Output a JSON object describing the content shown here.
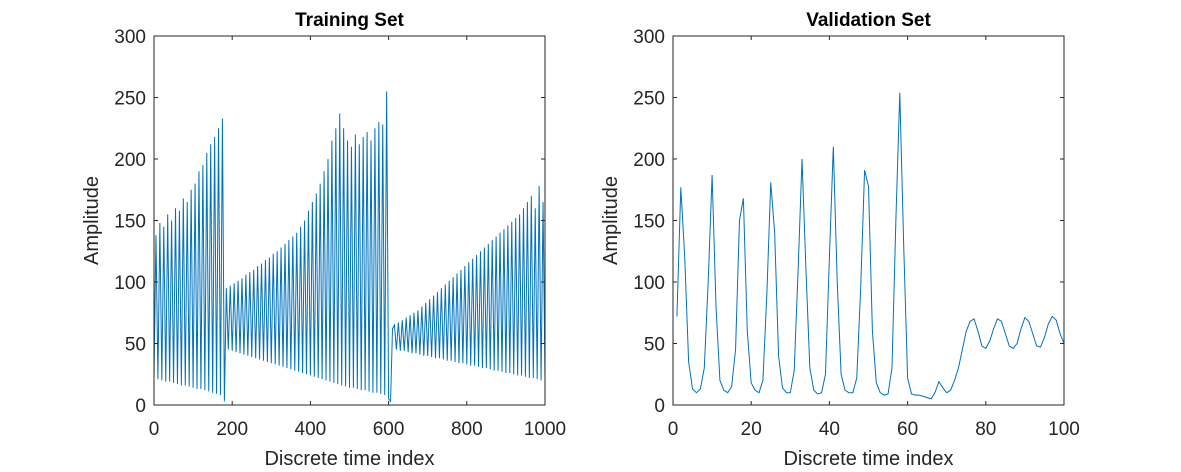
{
  "chart_data": [
    {
      "type": "line",
      "title": "Training Set",
      "xlabel": "Discrete time index",
      "ylabel": "Amplitude",
      "x": [
        0,
        5,
        10,
        15,
        20,
        25,
        30,
        35,
        40,
        45,
        50,
        55,
        60,
        65,
        70,
        75,
        80,
        85,
        90,
        95,
        100,
        105,
        110,
        115,
        120,
        125,
        130,
        135,
        140,
        145,
        150,
        155,
        160,
        165,
        170,
        175,
        180,
        185,
        190,
        195,
        200,
        205,
        210,
        215,
        220,
        225,
        230,
        235,
        240,
        245,
        250,
        255,
        260,
        265,
        270,
        275,
        280,
        285,
        290,
        295,
        300,
        305,
        310,
        315,
        320,
        325,
        330,
        335,
        340,
        345,
        350,
        355,
        360,
        365,
        370,
        375,
        380,
        385,
        390,
        395,
        400,
        405,
        410,
        415,
        420,
        425,
        430,
        435,
        440,
        445,
        450,
        455,
        460,
        465,
        470,
        475,
        480,
        485,
        490,
        495,
        500,
        505,
        510,
        515,
        520,
        525,
        530,
        535,
        540,
        545,
        550,
        555,
        560,
        565,
        570,
        575,
        580,
        585,
        590,
        595,
        600,
        605,
        610,
        615,
        620,
        625,
        630,
        635,
        640,
        645,
        650,
        655,
        660,
        665,
        670,
        675,
        680,
        685,
        690,
        695,
        700,
        705,
        710,
        715,
        720,
        725,
        730,
        735,
        740,
        745,
        750,
        755,
        760,
        765,
        770,
        775,
        780,
        785,
        790,
        795,
        800,
        805,
        810,
        815,
        820,
        825,
        830,
        835,
        840,
        845,
        850,
        855,
        860,
        865,
        870,
        875,
        880,
        885,
        890,
        895,
        900,
        905,
        910,
        915,
        920,
        925,
        930,
        935,
        940,
        945,
        950,
        955,
        960,
        965,
        970,
        975,
        980,
        985,
        990,
        995,
        1000
      ],
      "series": [
        {
          "color": "#0072bd",
          "values": [
            22,
            138,
            21,
            148,
            20,
            145,
            19,
            155,
            19,
            150,
            18,
            160,
            17,
            158,
            16,
            168,
            16,
            165,
            15,
            175,
            14,
            180,
            13,
            190,
            13,
            195,
            12,
            205,
            11,
            212,
            10,
            218,
            9,
            225,
            8,
            233,
            3,
            95,
            45,
            97,
            44,
            99,
            43,
            101,
            42,
            103,
            41,
            106,
            40,
            108,
            39,
            110,
            38,
            113,
            37,
            115,
            36,
            118,
            35,
            120,
            34,
            123,
            33,
            125,
            32,
            128,
            31,
            131,
            30,
            134,
            29,
            137,
            28,
            140,
            27,
            145,
            26,
            150,
            25,
            158,
            24,
            165,
            23,
            172,
            22,
            180,
            21,
            190,
            20,
            200,
            19,
            215,
            18,
            225,
            17,
            237,
            16,
            225,
            15,
            215,
            14,
            210,
            14,
            220,
            13,
            212,
            12,
            218,
            12,
            222,
            11,
            215,
            10,
            225,
            10,
            230,
            9,
            228,
            8,
            255,
            5,
            3,
            62,
            65,
            45,
            67,
            44,
            69,
            44,
            71,
            43,
            73,
            42,
            75,
            42,
            77,
            41,
            80,
            40,
            83,
            40,
            86,
            39,
            89,
            38,
            92,
            38,
            95,
            37,
            98,
            36,
            101,
            36,
            104,
            35,
            107,
            34,
            110,
            34,
            113,
            33,
            116,
            32,
            119,
            32,
            122,
            31,
            125,
            30,
            128,
            30,
            131,
            29,
            134,
            28,
            137,
            28,
            140,
            27,
            143,
            26,
            146,
            26,
            149,
            25,
            152,
            24,
            155,
            24,
            160,
            23,
            165,
            22,
            170,
            22,
            160,
            21,
            178,
            20,
            165,
            20
          ]
        }
      ],
      "xlim": [
        0,
        1000
      ],
      "xticks": [
        0,
        200,
        400,
        600,
        800,
        1000
      ],
      "ylim": [
        0,
        300
      ],
      "yticks": [
        0,
        50,
        100,
        150,
        200,
        250,
        300
      ]
    },
    {
      "type": "line",
      "title": "Validation Set",
      "xlabel": "Discrete time index",
      "ylabel": "Amplitude",
      "x": [
        1,
        2,
        3,
        4,
        5,
        6,
        7,
        8,
        9,
        10,
        11,
        12,
        13,
        14,
        15,
        16,
        17,
        18,
        19,
        20,
        21,
        22,
        23,
        24,
        25,
        26,
        27,
        28,
        29,
        30,
        31,
        32,
        33,
        34,
        35,
        36,
        37,
        38,
        39,
        40,
        41,
        42,
        43,
        44,
        45,
        46,
        47,
        48,
        49,
        50,
        51,
        52,
        53,
        54,
        55,
        56,
        57,
        58,
        59,
        60,
        61,
        62,
        63,
        64,
        65,
        66,
        67,
        68,
        69,
        70,
        71,
        72,
        73,
        74,
        75,
        76,
        77,
        78,
        79,
        80,
        81,
        82,
        83,
        84,
        85,
        86,
        87,
        88,
        89,
        90,
        91,
        92,
        93,
        94,
        95,
        96,
        97,
        98,
        99,
        100
      ],
      "series": [
        {
          "color": "#0072bd",
          "values": [
            72,
            177,
            120,
            35,
            13,
            10,
            13,
            30,
            100,
            187,
            80,
            20,
            12,
            10,
            15,
            45,
            150,
            168,
            60,
            18,
            12,
            10,
            20,
            90,
            181,
            140,
            40,
            14,
            10,
            10,
            28,
            110,
            200,
            110,
            30,
            12,
            9,
            10,
            25,
            120,
            210,
            100,
            25,
            12,
            10,
            10,
            22,
            95,
            191,
            178,
            60,
            18,
            10,
            8,
            9,
            30,
            150,
            254,
            130,
            22,
            9,
            8,
            8,
            7,
            6,
            5,
            10,
            19,
            14,
            10,
            12,
            20,
            30,
            45,
            60,
            68,
            70,
            60,
            48,
            46,
            52,
            62,
            70,
            68,
            58,
            48,
            46,
            50,
            62,
            71,
            68,
            58,
            48,
            47,
            55,
            66,
            72,
            69,
            58,
            50
          ]
        }
      ],
      "xlim": [
        0,
        100
      ],
      "xticks": [
        0,
        20,
        40,
        60,
        80,
        100
      ],
      "ylim": [
        0,
        300
      ],
      "yticks": [
        0,
        50,
        100,
        150,
        200,
        250,
        300
      ]
    }
  ]
}
